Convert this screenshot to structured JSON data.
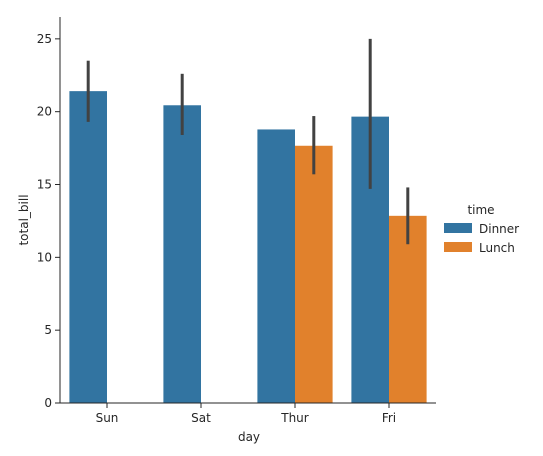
{
  "chart_data": {
    "type": "bar",
    "title": "",
    "xlabel": "day",
    "ylabel": "total_bill",
    "categories": [
      "Sun",
      "Sat",
      "Thur",
      "Fri"
    ],
    "ylim": [
      0,
      26.5
    ],
    "yticks": [
      0,
      5,
      10,
      15,
      20,
      25
    ],
    "grid": false,
    "legend": {
      "title": "time",
      "placement": "right"
    },
    "series": [
      {
        "name": "Dinner",
        "color": "#3274a1",
        "values": [
          21.41,
          20.44,
          18.78,
          19.66
        ],
        "error_low": [
          19.3,
          18.4,
          null,
          14.7
        ],
        "error_high": [
          23.5,
          22.6,
          null,
          25.0
        ]
      },
      {
        "name": "Lunch",
        "color": "#e1812c",
        "values": [
          null,
          null,
          17.66,
          12.85
        ],
        "error_low": [
          null,
          null,
          15.7,
          10.9
        ],
        "error_high": [
          null,
          null,
          19.7,
          14.8
        ]
      }
    ]
  }
}
